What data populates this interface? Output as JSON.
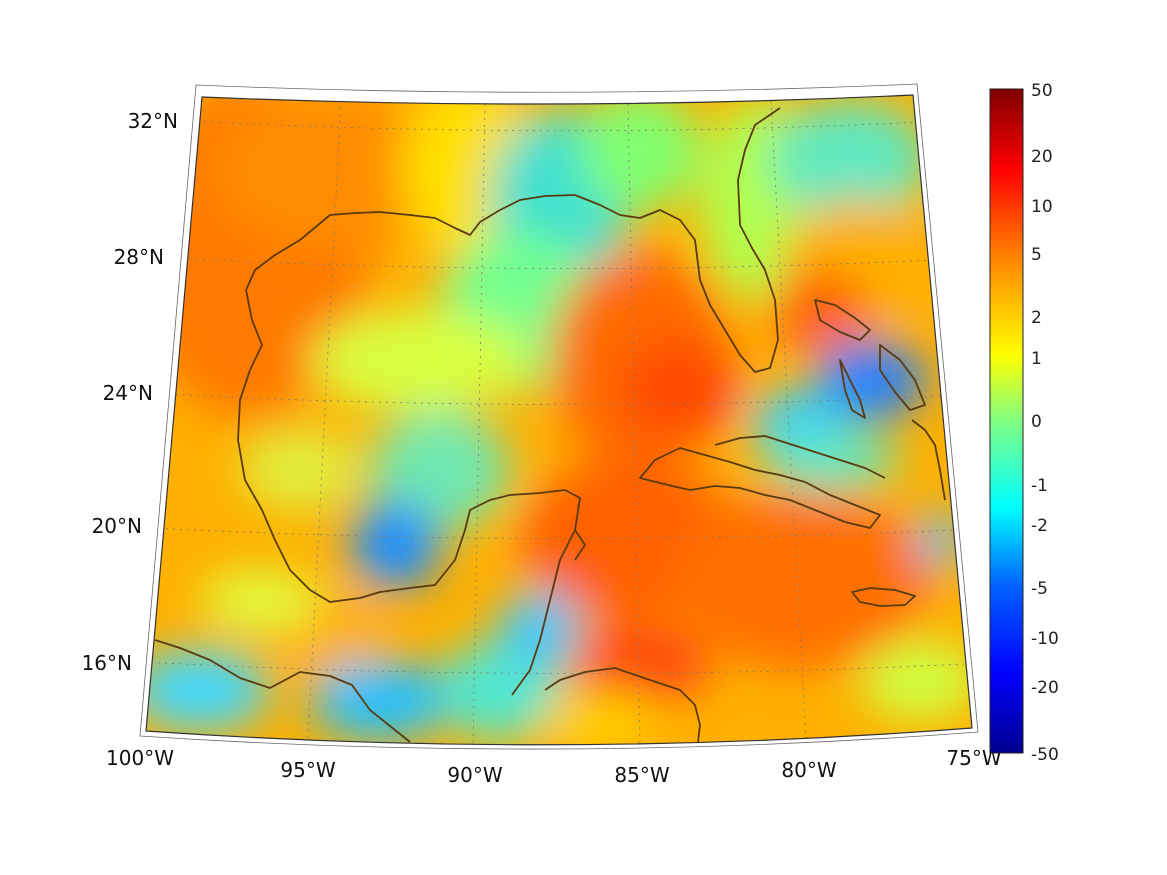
{
  "map": {
    "projection": "conic (Lambert-style), Gulf of Mexico and Caribbean region",
    "lon_range": [
      -100,
      -75
    ],
    "lat_range": [
      14,
      33
    ],
    "coastline_color": "#5a3a10",
    "grid": "dashed gray graticule every 5° lon and 4° lat",
    "lon_labels": [
      "100°W",
      "95°W",
      "90°W",
      "85°W",
      "80°W",
      "75°W"
    ],
    "lat_labels": [
      "32°N",
      "28°N",
      "24°N",
      "20°N",
      "16°N"
    ]
  },
  "colorbar": {
    "colormap": "jet",
    "tick_labels": [
      "50",
      "20",
      "10",
      "5",
      "2",
      "1",
      "0",
      "-1",
      "-2",
      "-5",
      "-10",
      "-20",
      "-50"
    ],
    "colors": [
      "#800000",
      "#ff0000",
      "#ff8000",
      "#ffff00",
      "#80ff80",
      "#00ffff",
      "#0080ff",
      "#0000ff",
      "#00008f"
    ]
  }
}
